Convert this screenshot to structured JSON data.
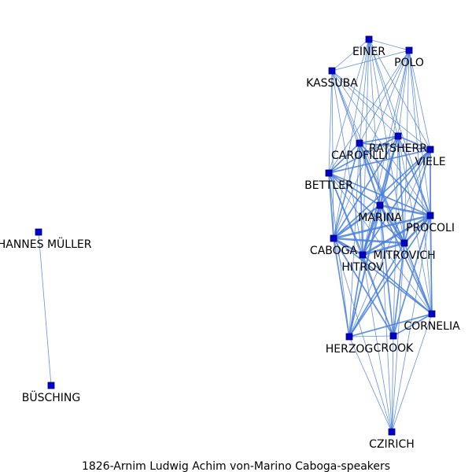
{
  "caption": "1826-Arnim  Ludwig  Achim  von-Marino  Caboga-speakers",
  "colors": {
    "node_fill": "#0000cc",
    "node_stroke": "#000066",
    "edge": "#4a7fdc",
    "text": "#000000"
  },
  "nodes": [
    {
      "id": "EINER",
      "label": "EINER"
    },
    {
      "id": "POLO",
      "label": "POLO"
    },
    {
      "id": "KASSUBA",
      "label": "KASSUBA"
    },
    {
      "id": "CAROFILLI",
      "label": "CAROFILLI"
    },
    {
      "id": "RATSHERR",
      "label": "RATSHERR"
    },
    {
      "id": "VIELE",
      "label": "VIELE"
    },
    {
      "id": "BETTLER",
      "label": "BETTLER"
    },
    {
      "id": "MARINA",
      "label": "MARINA"
    },
    {
      "id": "PROCOLI",
      "label": "PROCOLI"
    },
    {
      "id": "CABOGA",
      "label": "CABOGA"
    },
    {
      "id": "MITROVICH",
      "label": "MITROVICH"
    },
    {
      "id": "HITROV",
      "label": "HITROV"
    },
    {
      "id": "CORNELIA",
      "label": "CORNELIA"
    },
    {
      "id": "HERZOG",
      "label": "HERZOG"
    },
    {
      "id": "CROOK",
      "label": "CROOK"
    },
    {
      "id": "CZIRICH",
      "label": "CZIRICH"
    },
    {
      "id": "JOHANNES_MULLER",
      "label": "JOHANNES MÜLLER"
    },
    {
      "id": "BUSCHING",
      "label": "BÜSCHING"
    }
  ],
  "edges": [
    [
      "JOHANNES_MULLER",
      "BUSCHING",
      1
    ],
    [
      "EINER",
      "POLO",
      1
    ],
    [
      "EINER",
      "KASSUBA",
      1
    ],
    [
      "EINER",
      "CAROFILLI",
      1
    ],
    [
      "EINER",
      "RATSHERR",
      1
    ],
    [
      "EINER",
      "VIELE",
      1
    ],
    [
      "EINER",
      "MARINA",
      1
    ],
    [
      "EINER",
      "PROCOLI",
      1
    ],
    [
      "EINER",
      "CABOGA",
      1
    ],
    [
      "EINER",
      "MITROVICH",
      1
    ],
    [
      "EINER",
      "HITROV",
      1
    ],
    [
      "EINER",
      "BETTLER",
      1
    ],
    [
      "POLO",
      "KASSUBA",
      1
    ],
    [
      "POLO",
      "CAROFILLI",
      1
    ],
    [
      "POLO",
      "RATSHERR",
      1
    ],
    [
      "POLO",
      "VIELE",
      1
    ],
    [
      "POLO",
      "MARINA",
      1
    ],
    [
      "POLO",
      "PROCOLI",
      1
    ],
    [
      "POLO",
      "CABOGA",
      1
    ],
    [
      "POLO",
      "MITROVICH",
      1
    ],
    [
      "POLO",
      "HITROV",
      1
    ],
    [
      "POLO",
      "BETTLER",
      1
    ],
    [
      "POLO",
      "CORNELIA",
      1
    ],
    [
      "KASSUBA",
      "CAROFILLI",
      1
    ],
    [
      "KASSUBA",
      "RATSHERR",
      1
    ],
    [
      "KASSUBA",
      "VIELE",
      1
    ],
    [
      "KASSUBA",
      "BETTLER",
      1
    ],
    [
      "KASSUBA",
      "MARINA",
      1
    ],
    [
      "KASSUBA",
      "PROCOLI",
      1
    ],
    [
      "KASSUBA",
      "CABOGA",
      1
    ],
    [
      "KASSUBA",
      "MITROVICH",
      1
    ],
    [
      "KASSUBA",
      "HITROV",
      1
    ],
    [
      "CAROFILLI",
      "RATSHERR",
      2
    ],
    [
      "CAROFILLI",
      "VIELE",
      2
    ],
    [
      "CAROFILLI",
      "BETTLER",
      2
    ],
    [
      "CAROFILLI",
      "MARINA",
      2
    ],
    [
      "CAROFILLI",
      "PROCOLI",
      2
    ],
    [
      "CAROFILLI",
      "CABOGA",
      2
    ],
    [
      "CAROFILLI",
      "MITROVICH",
      2
    ],
    [
      "CAROFILLI",
      "HITROV",
      2
    ],
    [
      "CAROFILLI",
      "HERZOG",
      1
    ],
    [
      "CAROFILLI",
      "CORNELIA",
      1
    ],
    [
      "RATSHERR",
      "VIELE",
      2
    ],
    [
      "RATSHERR",
      "BETTLER",
      2
    ],
    [
      "RATSHERR",
      "MARINA",
      2
    ],
    [
      "RATSHERR",
      "PROCOLI",
      2
    ],
    [
      "RATSHERR",
      "CABOGA",
      2
    ],
    [
      "RATSHERR",
      "MITROVICH",
      2
    ],
    [
      "RATSHERR",
      "HITROV",
      2
    ],
    [
      "RATSHERR",
      "HERZOG",
      1
    ],
    [
      "RATSHERR",
      "CROOK",
      1
    ],
    [
      "RATSHERR",
      "CORNELIA",
      1
    ],
    [
      "VIELE",
      "BETTLER",
      2
    ],
    [
      "VIELE",
      "MARINA",
      2
    ],
    [
      "VIELE",
      "PROCOLI",
      2
    ],
    [
      "VIELE",
      "CABOGA",
      2
    ],
    [
      "VIELE",
      "MITROVICH",
      2
    ],
    [
      "VIELE",
      "HITROV",
      2
    ],
    [
      "VIELE",
      "CORNELIA",
      1
    ],
    [
      "VIELE",
      "HERZOG",
      1
    ],
    [
      "BETTLER",
      "MARINA",
      2
    ],
    [
      "BETTLER",
      "PROCOLI",
      2
    ],
    [
      "BETTLER",
      "CABOGA",
      2
    ],
    [
      "BETTLER",
      "MITROVICH",
      2
    ],
    [
      "BETTLER",
      "HITROV",
      2
    ],
    [
      "BETTLER",
      "HERZOG",
      1
    ],
    [
      "BETTLER",
      "CROOK",
      1
    ],
    [
      "BETTLER",
      "CORNELIA",
      1
    ],
    [
      "MARINA",
      "PROCOLI",
      3
    ],
    [
      "MARINA",
      "CABOGA",
      3
    ],
    [
      "MARINA",
      "MITROVICH",
      3
    ],
    [
      "MARINA",
      "HITROV",
      3
    ],
    [
      "MARINA",
      "CORNELIA",
      2
    ],
    [
      "MARINA",
      "HERZOG",
      2
    ],
    [
      "MARINA",
      "CROOK",
      2
    ],
    [
      "MARINA",
      "CZIRICH",
      1
    ],
    [
      "PROCOLI",
      "CABOGA",
      3
    ],
    [
      "PROCOLI",
      "MITROVICH",
      3
    ],
    [
      "PROCOLI",
      "HITROV",
      3
    ],
    [
      "PROCOLI",
      "CORNELIA",
      2
    ],
    [
      "PROCOLI",
      "HERZOG",
      2
    ],
    [
      "PROCOLI",
      "CROOK",
      2
    ],
    [
      "PROCOLI",
      "CZIRICH",
      1
    ],
    [
      "CABOGA",
      "MITROVICH",
      3
    ],
    [
      "CABOGA",
      "HITROV",
      3
    ],
    [
      "CABOGA",
      "CORNELIA",
      2
    ],
    [
      "CABOGA",
      "HERZOG",
      2
    ],
    [
      "CABOGA",
      "CROOK",
      2
    ],
    [
      "CABOGA",
      "CZIRICH",
      1
    ],
    [
      "MITROVICH",
      "HITROV",
      3
    ],
    [
      "MITROVICH",
      "CORNELIA",
      2
    ],
    [
      "MITROVICH",
      "HERZOG",
      2
    ],
    [
      "MITROVICH",
      "CROOK",
      2
    ],
    [
      "MITROVICH",
      "CZIRICH",
      1
    ],
    [
      "HITROV",
      "CORNELIA",
      2
    ],
    [
      "HITROV",
      "HERZOG",
      2
    ],
    [
      "HITROV",
      "CROOK",
      2
    ],
    [
      "HITROV",
      "CZIRICH",
      1
    ],
    [
      "CORNELIA",
      "HERZOG",
      2
    ],
    [
      "CORNELIA",
      "CROOK",
      2
    ],
    [
      "CORNELIA",
      "CZIRICH",
      1
    ],
    [
      "HERZOG",
      "CROOK",
      1
    ],
    [
      "HERZOG",
      "CZIRICH",
      1
    ],
    [
      "CROOK",
      "CZIRICH",
      1
    ]
  ]
}
